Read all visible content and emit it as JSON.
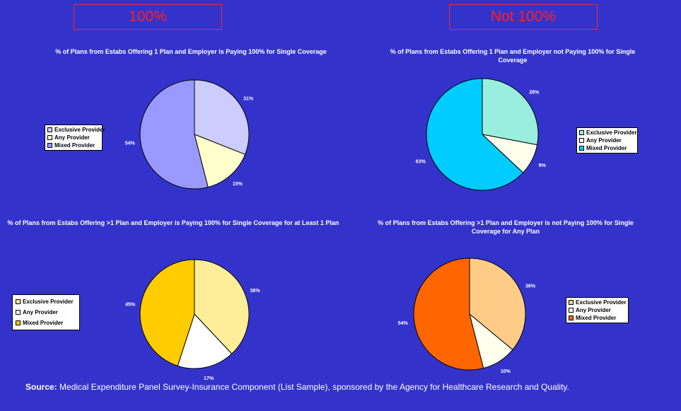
{
  "headers": {
    "left": "100%",
    "right": "Not 100%"
  },
  "source": {
    "label": "Source:",
    "text": " Medical Expenditure Panel Survey-Insurance Component (List Sample), sponsored by the Agency for Healthcare Research and Quality."
  },
  "chart_data": [
    {
      "type": "pie",
      "title": "% of Plans from Estabs Offering 1 Plan and Employer is Paying 100% for Single Coverage",
      "categories": [
        "Exclusive Provider",
        "Any Provider",
        "Mixed Provider"
      ],
      "values": [
        31,
        15,
        54
      ],
      "labels": [
        "31%",
        "15%",
        "54%"
      ],
      "colors": [
        "#ccccff",
        "#ffffcc",
        "#9999ff"
      ],
      "legend_position": "left"
    },
    {
      "type": "pie",
      "title": "% of Plans from Estabs Offering 1 Plan and Employer not Paying 100% for Single Coverage",
      "categories": [
        "Exclusive Provider",
        "Any Provider",
        "Mixed Provider"
      ],
      "values": [
        28,
        9,
        63
      ],
      "labels": [
        "28%",
        "9%",
        "63%"
      ],
      "colors": [
        "#99eedd",
        "#ffffee",
        "#00ccff"
      ],
      "legend_position": "right"
    },
    {
      "type": "pie",
      "title": "% of Plans from Estabs Offering >1 Plan and Employer is Paying 100% for Single Coverage for at Least 1 Plan",
      "categories": [
        "Exclusive Provider",
        "Any Provider",
        "Mixed Provider"
      ],
      "values": [
        38,
        17,
        45
      ],
      "labels": [
        "38%",
        "17%",
        "45%"
      ],
      "colors": [
        "#ffee99",
        "#ffffff",
        "#ffcc00"
      ],
      "legend_position": "left"
    },
    {
      "type": "pie",
      "title": "% of Plans from Estabs Offering >1 Plan and Employer is not Paying 100% for Single Coverage for Any Plan",
      "categories": [
        "Exclusive Provider",
        "Any Provider",
        "Mixed Provider"
      ],
      "values": [
        36,
        10,
        54
      ],
      "labels": [
        "36%",
        "10%",
        "54%"
      ],
      "colors": [
        "#ffcc88",
        "#ffffee",
        "#ff6600"
      ],
      "legend_position": "right"
    }
  ]
}
